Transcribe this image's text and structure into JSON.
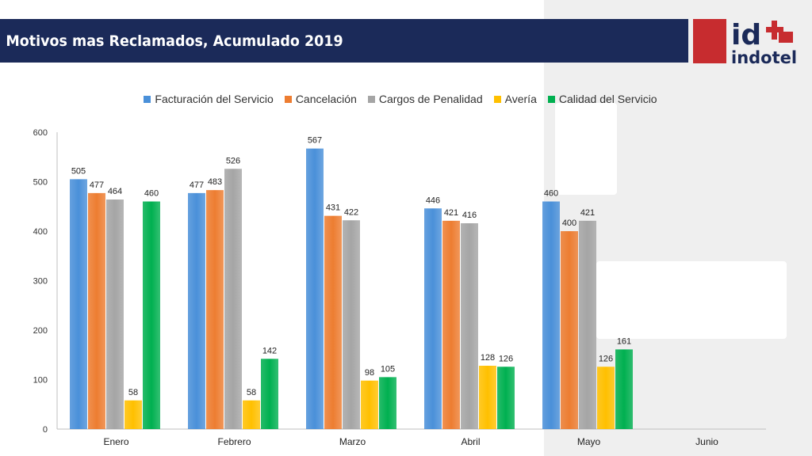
{
  "header": {
    "title": "Motivos mas Reclamados, Acumulado 2019"
  },
  "logo": {
    "mark": "id",
    "name": "indotel",
    "colors": {
      "red": "#c72c2f",
      "navy": "#1b2a59"
    }
  },
  "chart_data": {
    "type": "bar",
    "title": "",
    "xlabel": "",
    "ylabel": "",
    "ylim": [
      0,
      600
    ],
    "yticks": [
      0,
      100,
      200,
      300,
      400,
      500,
      600
    ],
    "legend_position": "top",
    "categories": [
      "Enero",
      "Febrero",
      "Marzo",
      "Abril",
      "Mayo",
      "Junio"
    ],
    "series": [
      {
        "name": "Facturación del Servicio",
        "color": "#4a90d9",
        "values": [
          505,
          477,
          567,
          446,
          460,
          null
        ]
      },
      {
        "name": "Cancelación",
        "color": "#ed7d31",
        "values": [
          477,
          483,
          431,
          421,
          400,
          null
        ]
      },
      {
        "name": "Cargos de Penalidad",
        "color": "#a5a5a5",
        "values": [
          464,
          526,
          422,
          416,
          421,
          null
        ]
      },
      {
        "name": "Avería",
        "color": "#ffc000",
        "values": [
          58,
          58,
          98,
          128,
          126,
          null
        ]
      },
      {
        "name": "Calidad del Servicio",
        "color": "#00b050",
        "values": [
          460,
          142,
          105,
          126,
          161,
          null
        ]
      }
    ]
  }
}
